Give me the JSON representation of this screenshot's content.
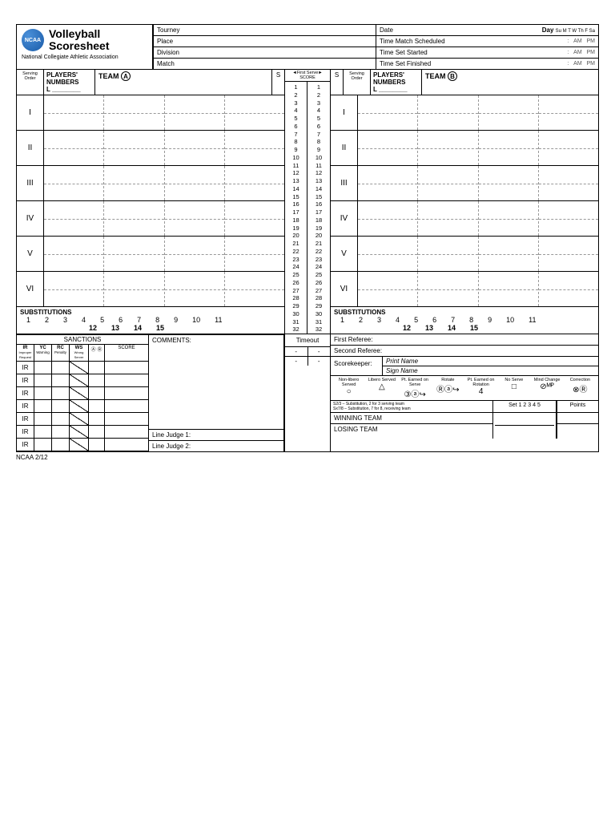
{
  "title1": "Volleyball",
  "title2": "Scoresheet",
  "subtitle": "National Collegiate Athletic Association",
  "logo_text": "NCAA",
  "info": {
    "tourney": "Tourney",
    "place": "Place",
    "division": "Division",
    "match": "Match",
    "date": "Date",
    "day_label": "Day",
    "days": "Su  M  T  W  Th  F  Sa",
    "tms": "Time Match Scheduled",
    "tss": "Time Set Started",
    "tsf": "Time Set Finished",
    "colon": ":",
    "am": "AM",
    "pm": "PM"
  },
  "team": {
    "serving_order": "Serving Order",
    "players_numbers": "PLAYERS' NUMBERS",
    "L": "L ________",
    "teamA": "TEAM",
    "A": "A",
    "teamB": "TEAM",
    "B": "B",
    "S": "S",
    "romans": [
      "I",
      "II",
      "III",
      "IV",
      "V",
      "VI"
    ]
  },
  "score": {
    "first_serve": "◄First Serve►",
    "score_label": "SCORE",
    "nums": [
      "1",
      "2",
      "3",
      "4",
      "5",
      "6",
      "7",
      "8",
      "9",
      "10",
      "11",
      "12",
      "13",
      "14",
      "15",
      "16",
      "17",
      "18",
      "19",
      "20",
      "21",
      "22",
      "23",
      "24",
      "25",
      "26",
      "27",
      "28",
      "29",
      "30",
      "31",
      "32"
    ]
  },
  "subs": {
    "title": "SUBSTITUTIONS",
    "row1": [
      "1",
      "2",
      "3",
      "4",
      "5",
      "6",
      "7",
      "8",
      "9",
      "10",
      "11"
    ],
    "row2": [
      "12",
      "13",
      "14",
      "15"
    ]
  },
  "sanctions": {
    "title": "SANCTIONS",
    "ir": "IR",
    "ir_sub": "Improper Request",
    "yc": "YC",
    "yc_sub": "Warning",
    "rc": "RC",
    "rc_sub": "Penalty",
    "ws": "WS",
    "ws_sub": "Wrong Server",
    "ab": "Ⓐ Ⓑ",
    "score": "SCORE"
  },
  "comments": "COMMENTS:",
  "lj1": "Line Judge 1:",
  "lj2": "Line Judge 2:",
  "timeout": "Timeout",
  "dash": "-",
  "refs": {
    "first": "First Referee:",
    "second": "Second Referee:",
    "sk": "Scorekeeper:",
    "print": "Print Name",
    "sign": "Sign Name"
  },
  "legend": {
    "items": [
      "Non-libero Served",
      "Libero Served",
      "Pt. Earned on Serve",
      "Rotate",
      "Pt. Earned on Rotation",
      "No Serve",
      "Mind Change",
      "Correction"
    ],
    "syms": [
      "○",
      "△",
      "③ⓐ↪",
      "Ⓡⓐ↪",
      "4",
      "□",
      "⊘ᴹᴾ",
      "⊗Ⓡ"
    ],
    "note1": "S2/3 – Substitution, 2 for 3 serving team",
    "note2": "Sx7/8 – Substitution, 7 for 8, receiving team"
  },
  "result": {
    "set": "Set 1 2 3 4 5",
    "points": "Points",
    "win": "WINNING TEAM",
    "lose": "LOSING TEAM"
  },
  "footer": "NCAA  2/12",
  "colors": {
    "border": "#000000",
    "logo1": "#4a90d9",
    "logo2": "#1a5ba8"
  }
}
